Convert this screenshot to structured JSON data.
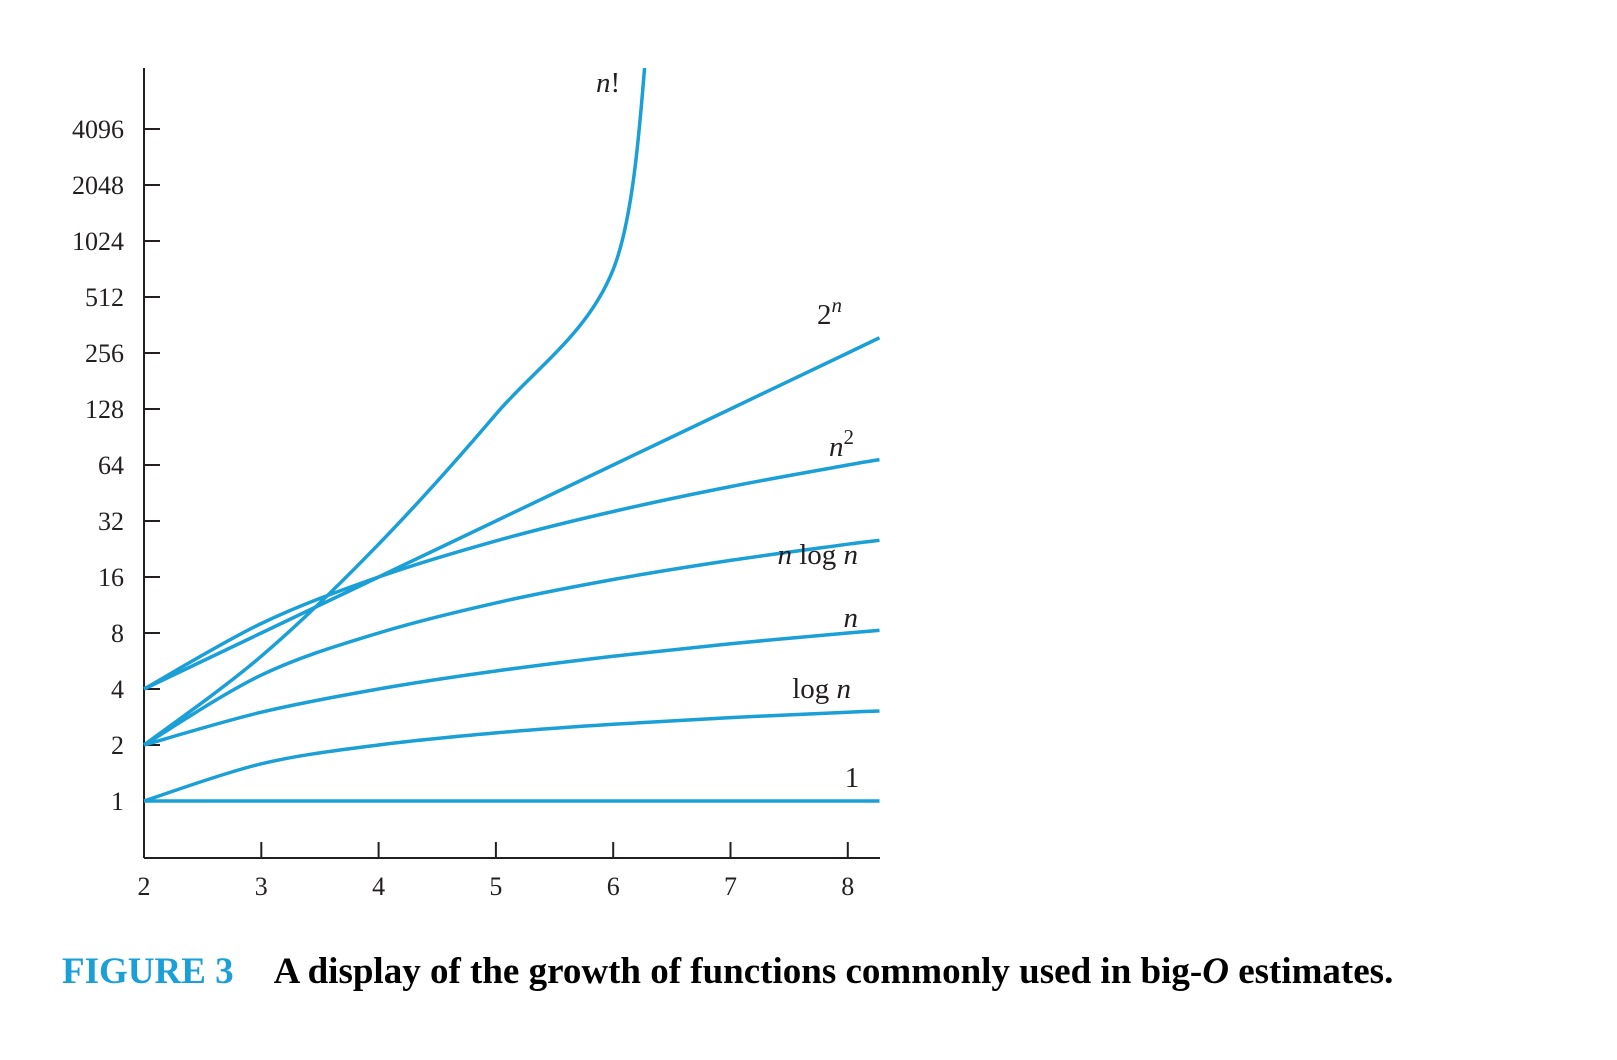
{
  "colors": {
    "line": "#1a9fd6",
    "axis": "#231f20",
    "caption_number": "#1a9fd6",
    "caption_text": "#000000"
  },
  "caption": {
    "number": "FIGURE 3",
    "text_before": "A display of the growth of functions commonly used in big-",
    "text_italic": "O",
    "text_after": " estimates."
  },
  "chart_data": {
    "type": "line",
    "title": "",
    "xlabel": "",
    "ylabel": "",
    "y_scale": "log2",
    "xlim": [
      2,
      8.27
    ],
    "ylim": [
      0.5,
      15000
    ],
    "x_ticks": [
      "2",
      "3",
      "4",
      "5",
      "6",
      "7",
      "8"
    ],
    "y_ticks": [
      "1",
      "2",
      "4",
      "8",
      "16",
      "32",
      "64",
      "128",
      "256",
      "512",
      "1024",
      "2048",
      "4096"
    ],
    "grid": false,
    "legend": "none (labels placed next to curves)",
    "series": [
      {
        "name": "1",
        "label_parts": [
          {
            "t": "1",
            "i": false
          }
        ],
        "x": [
          2,
          3,
          4,
          5,
          6,
          7,
          8,
          8.27
        ],
        "y": [
          1,
          1,
          1,
          1,
          1,
          1,
          1,
          1
        ]
      },
      {
        "name": "log n",
        "label_parts": [
          {
            "t": "log ",
            "i": false
          },
          {
            "t": "n",
            "i": true
          }
        ],
        "x": [
          2,
          3,
          4,
          5,
          6,
          7,
          8,
          8.27
        ],
        "y": [
          1,
          1.585,
          2,
          2.322,
          2.585,
          2.807,
          3,
          3.048
        ]
      },
      {
        "name": "n",
        "label_parts": [
          {
            "t": "n",
            "i": true
          }
        ],
        "x": [
          2,
          3,
          4,
          5,
          6,
          7,
          8,
          8.27
        ],
        "y": [
          2,
          3,
          4,
          5,
          6,
          7,
          8,
          8.27
        ]
      },
      {
        "name": "n log n",
        "label_parts": [
          {
            "t": "n",
            "i": true
          },
          {
            "t": " log ",
            "i": false
          },
          {
            "t": "n",
            "i": true
          }
        ],
        "x": [
          2,
          3,
          4,
          5,
          6,
          7,
          8,
          8.27
        ],
        "y": [
          2,
          4.75,
          8,
          11.61,
          15.51,
          19.65,
          24,
          25.2
        ]
      },
      {
        "name": "n^2",
        "label_parts": [
          {
            "t": "n",
            "i": true
          },
          {
            "t": "2",
            "i": false,
            "sup": true
          }
        ],
        "x": [
          2,
          3,
          4,
          5,
          6,
          7,
          8,
          8.27
        ],
        "y": [
          4,
          9,
          16,
          25,
          36,
          49,
          64,
          68.4
        ]
      },
      {
        "name": "2^n",
        "label_parts": [
          {
            "t": "2",
            "i": false
          },
          {
            "t": "n",
            "i": true,
            "sup": true
          }
        ],
        "x": [
          2,
          3,
          4,
          5,
          6,
          7,
          8,
          8.27
        ],
        "y": [
          4,
          8,
          16,
          32,
          64,
          128,
          256,
          309
        ]
      },
      {
        "name": "n!",
        "label_parts": [
          {
            "t": "n",
            "i": true
          },
          {
            "t": "!",
            "i": false
          }
        ],
        "x": [
          2,
          3,
          4,
          5,
          6,
          6.3
        ],
        "y": [
          2,
          6,
          24,
          120,
          720,
          14000
        ]
      }
    ]
  }
}
